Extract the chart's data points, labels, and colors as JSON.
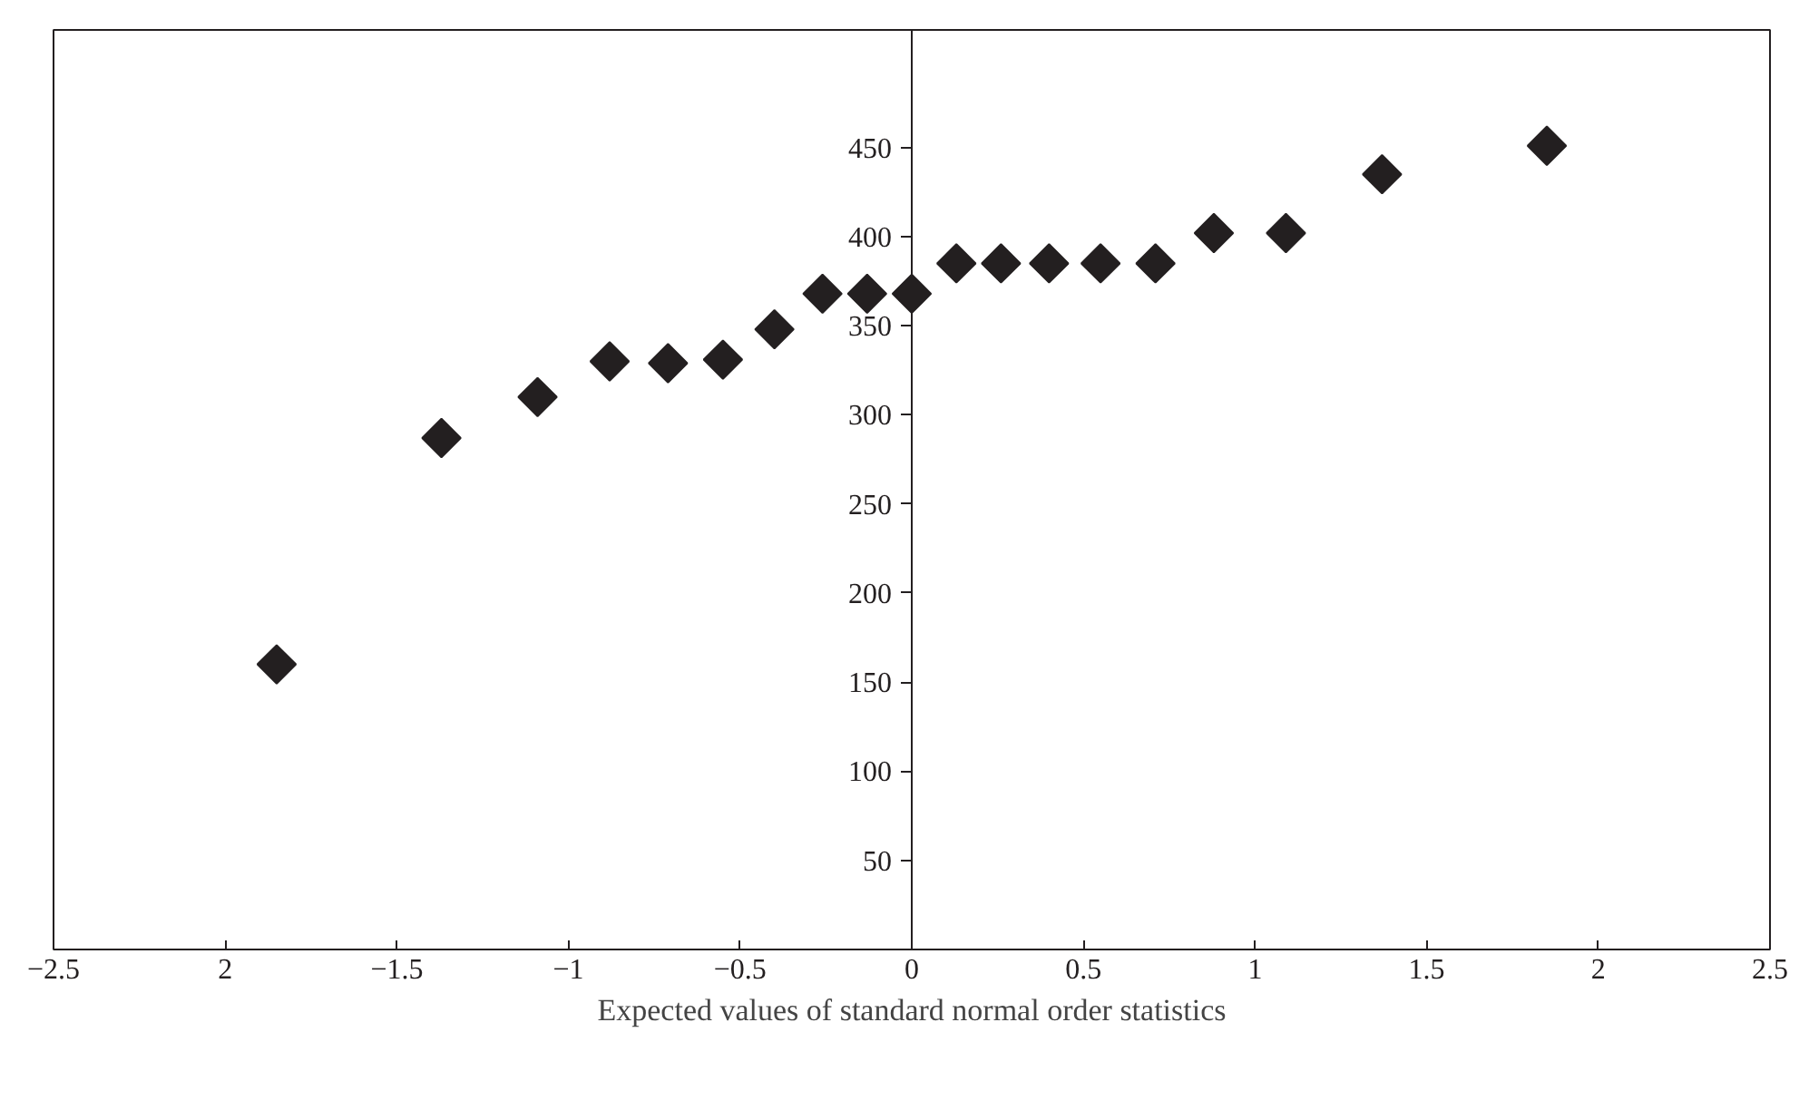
{
  "chart_data": {
    "type": "scatter",
    "xlabel": "Expected values of standard normal order statistics",
    "x": [
      -1.85,
      -1.37,
      -1.09,
      -0.88,
      -0.71,
      -0.55,
      -0.4,
      -0.26,
      -0.13,
      0,
      0.13,
      0.26,
      0.4,
      0.55,
      0.71,
      0.88,
      1.09,
      1.37,
      1.85
    ],
    "series": [
      {
        "color": "#231f20",
        "values": [
          160,
          287,
          310,
          330,
          329,
          331,
          348,
          368,
          368,
          368,
          385,
          385,
          385,
          385,
          385,
          402,
          402,
          435,
          451
        ]
      }
    ],
    "marker": "diamond",
    "grid": false,
    "xlim": [
      -2.5,
      2.5
    ],
    "ylim": [
      0,
      516
    ],
    "xticks": [
      -2.5,
      {
        "value": -2,
        "label": "2"
      },
      -1.5,
      -1,
      -0.5,
      0,
      0.5,
      1,
      1.5,
      2,
      2.5
    ],
    "yticks": [
      50,
      100,
      150,
      200,
      250,
      300,
      350,
      400,
      450
    ]
  }
}
